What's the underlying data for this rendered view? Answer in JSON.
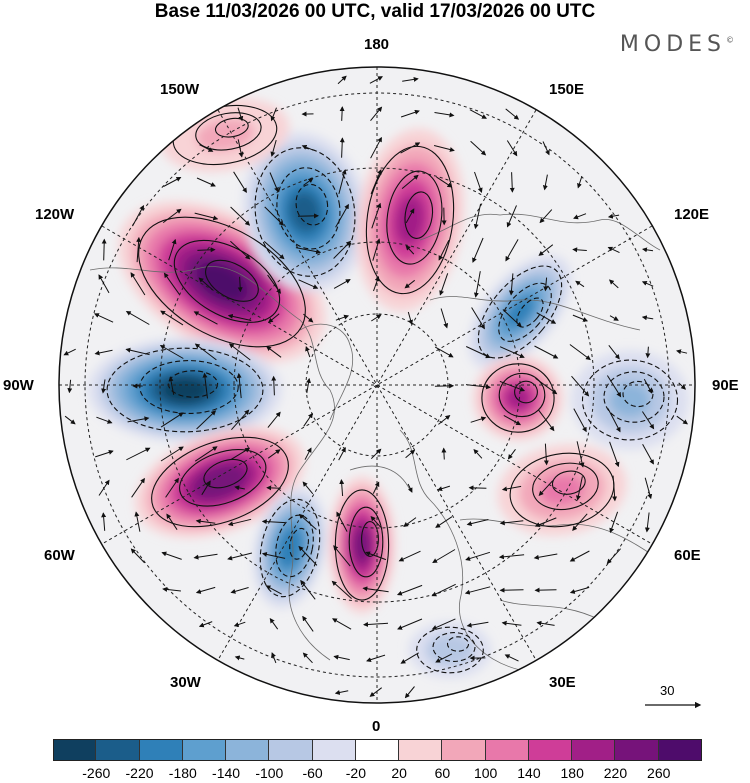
{
  "title": "Base 11/03/2026 00 UTC, valid 17/03/2026 00 UTC",
  "brand": "MODES",
  "brand_mark": "©",
  "longitude_labels": {
    "top": "180",
    "top_left": "150W",
    "top_right": "150E",
    "upper_left": "120W",
    "upper_right": "120E",
    "left": "90W",
    "right": "90E",
    "lower_left": "60W",
    "lower_right": "60E",
    "bottom_left": "30W",
    "bottom_right": "30E",
    "bottom": "0"
  },
  "reference_vector": {
    "label": "30",
    "icon": "arrow-right-icon"
  },
  "colorbar": {
    "ticks": [
      "-260",
      "-220",
      "-180",
      "-140",
      "-100",
      "-60",
      "-20",
      "20",
      "60",
      "100",
      "140",
      "180",
      "220",
      "260"
    ],
    "colors": [
      "#0f3f5f",
      "#1b5d8a",
      "#2f80b8",
      "#5e9fcf",
      "#8cb4da",
      "#b7c8e4",
      "#dcdff0",
      "#ffffff",
      "#f8d3d6",
      "#f2a7b9",
      "#e878aa",
      "#cf3d98",
      "#a11f87",
      "#76137a",
      "#4e0c6b"
    ]
  },
  "anomaly_centers": [
    {
      "id": "pos-120w",
      "value": 260
    },
    {
      "id": "neg-90w",
      "value": -260
    },
    {
      "id": "pos-70w",
      "value": 240
    },
    {
      "id": "neg-150w",
      "value": -220
    },
    {
      "id": "neg-40w",
      "value": -200
    },
    {
      "id": "pos-20w",
      "value": 220
    },
    {
      "id": "pos-165e",
      "value": 180
    },
    {
      "id": "neg-120e",
      "value": -180
    },
    {
      "id": "pos-95e",
      "value": 180
    },
    {
      "id": "neg-60e",
      "value": -100
    },
    {
      "id": "pos-55e",
      "value": 100
    },
    {
      "id": "pos-130w",
      "value": 60
    },
    {
      "id": "neg-5e",
      "value": -80
    }
  ]
}
